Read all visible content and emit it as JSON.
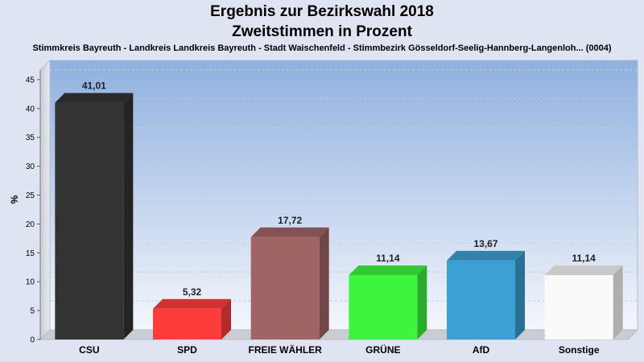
{
  "chart_data": {
    "type": "bar",
    "title": "Ergebnis zur Bezirkswahl 2018",
    "title2": "Zweitstimmen in Prozent",
    "subtitle": "Stimmkreis Bayreuth - Landkreis Landkreis Bayreuth - Stadt Waischenfeld - Stimmbezirk Gösseldorf-Seelig-Hannberg-Langenloh... (0004)",
    "ylabel": "%",
    "xlabel": "",
    "ylim": [
      0,
      47.5
    ],
    "yticks": [
      "0",
      "5",
      "10",
      "15",
      "20",
      "25",
      "30",
      "35",
      "40",
      "45"
    ],
    "categories": [
      "CSU",
      "SPD",
      "FREIE WÄHLER",
      "GRÜNE",
      "AfD",
      "Sonstige"
    ],
    "values": [
      41.01,
      5.32,
      17.72,
      11.14,
      13.67,
      11.14
    ],
    "value_labels": [
      "41,01",
      "5,32",
      "17,72",
      "11,14",
      "13,67",
      "11,14"
    ],
    "colors": [
      "#333333",
      "#ff3c3c",
      "#a06464",
      "#3cf53c",
      "#3ca0d2",
      "#fafafa"
    ],
    "grid": true,
    "legend": "none"
  }
}
